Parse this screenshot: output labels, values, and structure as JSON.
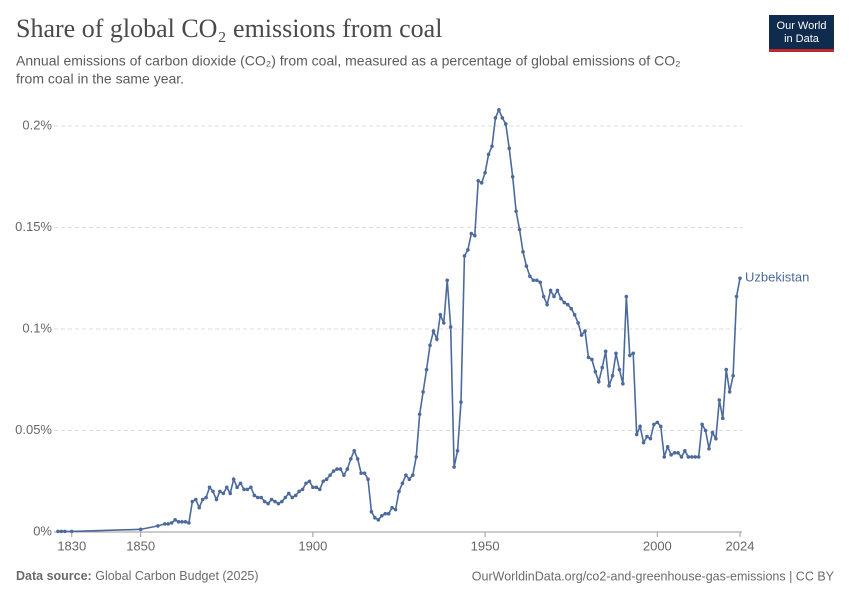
{
  "chart_data": {
    "type": "line",
    "title": "Share of global CO₂ emissions from coal",
    "subtitle_lines": [
      "Annual emissions of carbon dioxide (CO₂) from coal, measured as a percentage of global emissions of CO₂",
      "from coal in the same year."
    ],
    "logo_lines": [
      "Our World",
      "in Data"
    ],
    "source_prefix": "Data source:",
    "source": "Global Carbon Budget (2025)",
    "url": "OurWorldinData.org/co2-and-greenhouse-gas-emissions | CC BY",
    "xlim": [
      1826,
      2024
    ],
    "ylim": [
      0,
      0.21
    ],
    "xticks": [
      1830,
      1850,
      1900,
      1950,
      2000,
      2024
    ],
    "yticks": [
      {
        "value": 0,
        "label": "0%"
      },
      {
        "value": 0.05,
        "label": "0.05%"
      },
      {
        "value": 0.1,
        "label": "0.1%"
      },
      {
        "value": 0.15,
        "label": "0.15%"
      },
      {
        "value": 0.2,
        "label": "0.2%"
      }
    ],
    "grid": true,
    "x": [
      1826,
      1827,
      1828,
      1830,
      1850,
      1855,
      1857,
      1858,
      1859,
      1860,
      1861,
      1862,
      1863,
      1864,
      1865,
      1866,
      1867,
      1868,
      1869,
      1870,
      1871,
      1872,
      1873,
      1874,
      1875,
      1876,
      1877,
      1878,
      1879,
      1880,
      1881,
      1882,
      1883,
      1884,
      1885,
      1886,
      1887,
      1888,
      1889,
      1890,
      1891,
      1892,
      1893,
      1894,
      1895,
      1896,
      1897,
      1898,
      1899,
      1900,
      1901,
      1902,
      1903,
      1904,
      1905,
      1906,
      1907,
      1908,
      1909,
      1910,
      1911,
      1912,
      1913,
      1914,
      1915,
      1916,
      1917,
      1918,
      1919,
      1920,
      1921,
      1922,
      1923,
      1924,
      1925,
      1926,
      1927,
      1928,
      1929,
      1930,
      1931,
      1932,
      1933,
      1934,
      1935,
      1936,
      1937,
      1938,
      1939,
      1940,
      1941,
      1942,
      1943,
      1944,
      1945,
      1946,
      1947,
      1948,
      1949,
      1950,
      1951,
      1952,
      1953,
      1954,
      1955,
      1956,
      1957,
      1958,
      1959,
      1960,
      1961,
      1962,
      1963,
      1964,
      1965,
      1966,
      1967,
      1968,
      1969,
      1970,
      1971,
      1972,
      1973,
      1974,
      1975,
      1976,
      1977,
      1978,
      1979,
      1980,
      1981,
      1982,
      1983,
      1984,
      1985,
      1986,
      1987,
      1988,
      1989,
      1990,
      1991,
      1992,
      1993,
      1994,
      1995,
      1996,
      1997,
      1998,
      1999,
      2000,
      2001,
      2002,
      2003,
      2004,
      2005,
      2006,
      2007,
      2008,
      2009,
      2010,
      2011,
      2012,
      2013,
      2014,
      2015,
      2016,
      2017,
      2018,
      2019,
      2020,
      2021,
      2022,
      2023,
      2024
    ],
    "series": [
      {
        "name": "Uzbekistan",
        "color": "#4c6a9c",
        "values": [
          0.0003,
          0.0003,
          0.0003,
          0.0003,
          0.0013,
          0.003,
          0.004,
          0.004,
          0.0045,
          0.006,
          0.005,
          0.005,
          0.005,
          0.0045,
          0.015,
          0.016,
          0.012,
          0.016,
          0.017,
          0.022,
          0.02,
          0.016,
          0.02,
          0.019,
          0.022,
          0.019,
          0.026,
          0.022,
          0.024,
          0.021,
          0.021,
          0.022,
          0.018,
          0.017,
          0.017,
          0.015,
          0.014,
          0.016,
          0.015,
          0.014,
          0.015,
          0.017,
          0.019,
          0.017,
          0.018,
          0.02,
          0.021,
          0.024,
          0.025,
          0.022,
          0.022,
          0.021,
          0.025,
          0.026,
          0.028,
          0.03,
          0.031,
          0.031,
          0.028,
          0.031,
          0.036,
          0.04,
          0.036,
          0.029,
          0.029,
          0.026,
          0.01,
          0.007,
          0.006,
          0.008,
          0.009,
          0.009,
          0.012,
          0.011,
          0.02,
          0.024,
          0.028,
          0.026,
          0.028,
          0.037,
          0.058,
          0.069,
          0.08,
          0.092,
          0.099,
          0.095,
          0.107,
          0.103,
          0.124,
          0.101,
          0.032,
          0.04,
          0.064,
          0.136,
          0.139,
          0.147,
          0.146,
          0.173,
          0.172,
          0.177,
          0.186,
          0.19,
          0.204,
          0.208,
          0.204,
          0.201,
          0.189,
          0.175,
          0.158,
          0.149,
          0.138,
          0.131,
          0.126,
          0.124,
          0.124,
          0.123,
          0.116,
          0.112,
          0.119,
          0.116,
          0.119,
          0.115,
          0.113,
          0.112,
          0.11,
          0.107,
          0.103,
          0.097,
          0.099,
          0.086,
          0.085,
          0.079,
          0.074,
          0.081,
          0.089,
          0.072,
          0.077,
          0.088,
          0.08,
          0.073,
          0.116,
          0.087,
          0.088,
          0.048,
          0.052,
          0.044,
          0.047,
          0.046,
          0.053,
          0.054,
          0.052,
          0.037,
          0.042,
          0.038,
          0.039,
          0.039,
          0.037,
          0.04,
          0.037,
          0.037,
          0.037,
          0.037,
          0.053,
          0.05,
          0.041,
          0.049,
          0.046,
          0.065,
          0.056,
          0.08,
          0.069,
          0.077,
          0.116,
          0.125
        ]
      }
    ]
  }
}
